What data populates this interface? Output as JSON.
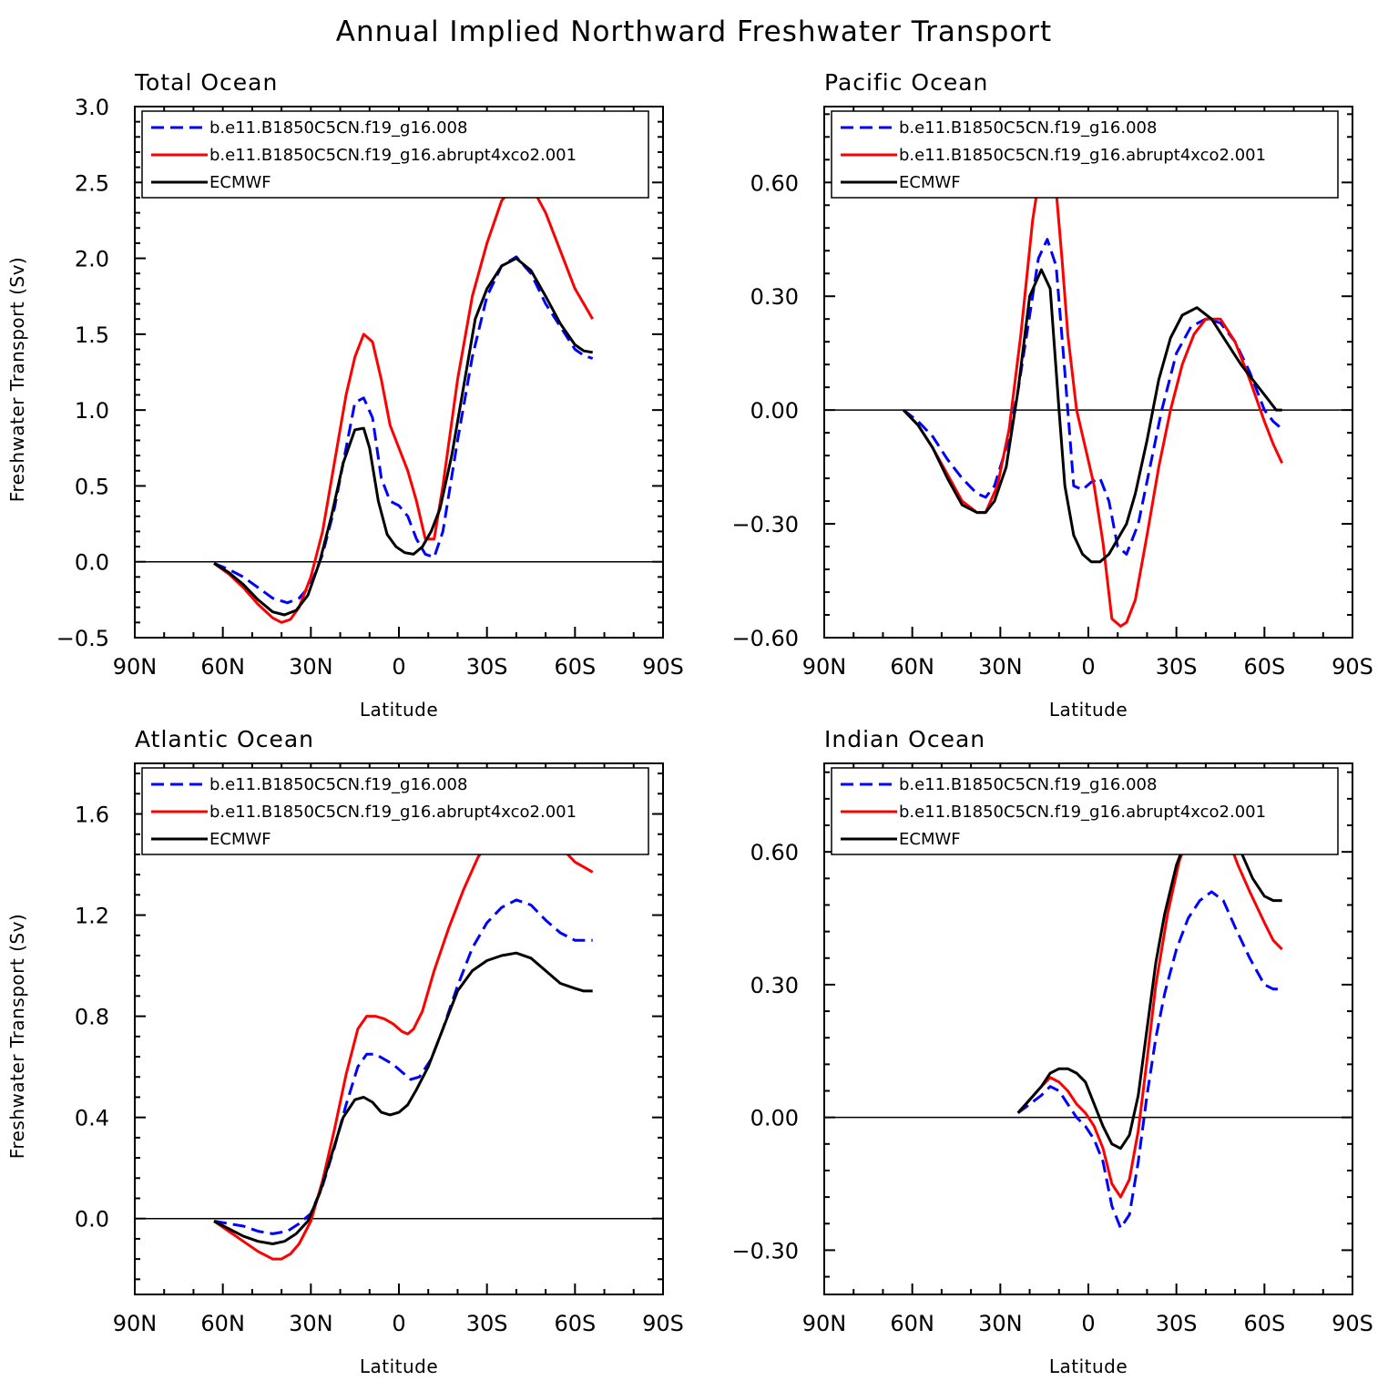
{
  "figure_title": "Annual Implied Northward Freshwater Transport",
  "colors": {
    "control": "#0000ff",
    "abrupt4xco2": "#ff0000",
    "ecmwf": "#000000",
    "zero_line": "#000000"
  },
  "chart_data": [
    {
      "type": "line",
      "title": "Total Ocean",
      "xlabel": "Latitude",
      "ylabel": "Freshwater Transport (Sv)",
      "xlim": [
        -90,
        90
      ],
      "ylim": [
        -0.5,
        3.0
      ],
      "xticks": [
        -90,
        -60,
        -30,
        0,
        30,
        60,
        90
      ],
      "xtick_labels": [
        "90N",
        "60N",
        "30N",
        "0",
        "30S",
        "60S",
        "90S"
      ],
      "yticks": [
        -0.5,
        0.0,
        0.5,
        1.0,
        1.5,
        2.0,
        2.5,
        3.0
      ],
      "ytick_labels": [
        "−0.5",
        "0.0",
        "0.5",
        "1.0",
        "1.5",
        "2.0",
        "2.5",
        "3.0"
      ],
      "legend_position": "top-left",
      "series": [
        {
          "name": "b.e11.B1850C5CN.f19_g16.008",
          "style": "dashed",
          "colorKey": "control",
          "x": [
            -63,
            -58,
            -53,
            -48,
            -43,
            -38,
            -34,
            -30,
            -26,
            -22,
            -18,
            -15,
            -12,
            -9,
            -6,
            -3,
            0,
            3,
            6,
            9,
            12,
            15,
            20,
            25,
            30,
            35,
            40,
            45,
            50,
            55,
            60,
            63,
            66
          ],
          "y": [
            -0.01,
            -0.05,
            -0.1,
            -0.17,
            -0.24,
            -0.27,
            -0.24,
            -0.15,
            0.05,
            0.35,
            0.75,
            1.05,
            1.08,
            0.95,
            0.55,
            0.4,
            0.37,
            0.3,
            0.15,
            0.05,
            0.03,
            0.2,
            0.8,
            1.35,
            1.75,
            1.95,
            2.01,
            1.9,
            1.7,
            1.55,
            1.4,
            1.36,
            1.34
          ]
        },
        {
          "name": "b.e11.B1850C5CN.f19_g16.abrupt4xco2.001",
          "style": "solid",
          "colorKey": "abrupt4xco2",
          "x": [
            -63,
            -58,
            -53,
            -48,
            -43,
            -40,
            -37,
            -34,
            -30,
            -26,
            -22,
            -18,
            -15,
            -12,
            -9,
            -6,
            -3,
            0,
            3,
            6,
            9,
            12,
            15,
            20,
            25,
            30,
            35,
            40,
            45,
            50,
            55,
            60,
            63,
            66
          ],
          "y": [
            -0.01,
            -0.08,
            -0.17,
            -0.28,
            -0.37,
            -0.4,
            -0.38,
            -0.3,
            -0.1,
            0.2,
            0.65,
            1.1,
            1.35,
            1.5,
            1.45,
            1.2,
            0.9,
            0.75,
            0.6,
            0.4,
            0.15,
            0.15,
            0.5,
            1.2,
            1.75,
            2.1,
            2.38,
            2.49,
            2.48,
            2.3,
            2.05,
            1.8,
            1.7,
            1.6
          ]
        },
        {
          "name": "ECMWF",
          "style": "solid",
          "colorKey": "ecmwf",
          "x": [
            -63,
            -58,
            -53,
            -48,
            -43,
            -39,
            -35,
            -31,
            -27,
            -23,
            -19,
            -15,
            -12,
            -10,
            -7,
            -4,
            -1,
            2,
            5,
            8,
            11,
            14,
            18,
            22,
            26,
            30,
            35,
            40,
            45,
            50,
            55,
            60,
            63,
            66
          ],
          "y": [
            -0.01,
            -0.07,
            -0.15,
            -0.25,
            -0.33,
            -0.35,
            -0.32,
            -0.22,
            0.0,
            0.3,
            0.65,
            0.87,
            0.88,
            0.75,
            0.4,
            0.18,
            0.1,
            0.06,
            0.05,
            0.1,
            0.2,
            0.35,
            0.7,
            1.15,
            1.6,
            1.8,
            1.95,
            2.0,
            1.92,
            1.75,
            1.57,
            1.43,
            1.39,
            1.38
          ]
        }
      ]
    },
    {
      "type": "line",
      "title": "Pacific Ocean",
      "xlabel": "Latitude",
      "ylabel": "",
      "xlim": [
        -90,
        90
      ],
      "ylim": [
        -0.6,
        0.8
      ],
      "xticks": [
        -90,
        -60,
        -30,
        0,
        30,
        60,
        90
      ],
      "xtick_labels": [
        "90N",
        "60N",
        "30N",
        "0",
        "30S",
        "60S",
        "90S"
      ],
      "yticks": [
        -0.6,
        -0.3,
        0.0,
        0.3,
        0.6
      ],
      "ytick_labels": [
        "−0.60",
        "−0.30",
        "0.00",
        "0.30",
        "0.60"
      ],
      "legend_position": "top-left",
      "series": [
        {
          "name": "b.e11.B1850C5CN.f19_g16.008",
          "style": "dashed",
          "colorKey": "control",
          "x": [
            -63,
            -58,
            -53,
            -48,
            -43,
            -38,
            -35,
            -32,
            -28,
            -24,
            -20,
            -17,
            -14,
            -11,
            -8,
            -5,
            -2,
            1,
            4,
            7,
            10,
            13,
            17,
            21,
            25,
            30,
            35,
            40,
            45,
            50,
            55,
            60,
            63,
            66
          ],
          "y": [
            0.0,
            -0.03,
            -0.07,
            -0.13,
            -0.18,
            -0.22,
            -0.23,
            -0.2,
            -0.1,
            0.05,
            0.25,
            0.4,
            0.45,
            0.38,
            0.1,
            -0.2,
            -0.21,
            -0.19,
            -0.18,
            -0.24,
            -0.36,
            -0.38,
            -0.3,
            -0.15,
            0.0,
            0.15,
            0.22,
            0.24,
            0.23,
            0.18,
            0.1,
            0.0,
            -0.03,
            -0.05
          ]
        },
        {
          "name": "b.e11.B1850C5CN.f19_g16.abrupt4xco2.001",
          "style": "solid",
          "colorKey": "abrupt4xco2",
          "x": [
            -63,
            -58,
            -53,
            -48,
            -43,
            -38,
            -35,
            -31,
            -27,
            -23,
            -19,
            -16,
            -13,
            -11,
            -9,
            -7,
            -4,
            -1,
            2,
            5,
            8,
            11,
            13,
            16,
            20,
            24,
            28,
            32,
            36,
            40,
            45,
            50,
            55,
            60,
            63,
            66
          ],
          "y": [
            0.0,
            -0.04,
            -0.1,
            -0.17,
            -0.24,
            -0.27,
            -0.27,
            -0.2,
            -0.05,
            0.2,
            0.5,
            0.65,
            0.66,
            0.58,
            0.4,
            0.2,
            0.0,
            -0.1,
            -0.2,
            -0.35,
            -0.55,
            -0.57,
            -0.56,
            -0.5,
            -0.33,
            -0.15,
            0.0,
            0.12,
            0.2,
            0.24,
            0.24,
            0.18,
            0.08,
            -0.03,
            -0.09,
            -0.14
          ]
        },
        {
          "name": "ECMWF",
          "style": "solid",
          "colorKey": "ecmwf",
          "x": [
            -63,
            -58,
            -53,
            -48,
            -43,
            -38,
            -35,
            -32,
            -28,
            -24,
            -20,
            -16,
            -13,
            -10,
            -8,
            -5,
            -2,
            1,
            4,
            7,
            10,
            13,
            16,
            20,
            24,
            28,
            32,
            37,
            42,
            47,
            52,
            57,
            61,
            64,
            66
          ],
          "y": [
            0.0,
            -0.04,
            -0.1,
            -0.18,
            -0.25,
            -0.27,
            -0.27,
            -0.24,
            -0.15,
            0.05,
            0.3,
            0.37,
            0.32,
            0.0,
            -0.2,
            -0.33,
            -0.38,
            -0.4,
            -0.4,
            -0.38,
            -0.34,
            -0.3,
            -0.22,
            -0.08,
            0.08,
            0.19,
            0.25,
            0.27,
            0.24,
            0.18,
            0.12,
            0.07,
            0.03,
            0.0,
            0.0
          ]
        }
      ]
    },
    {
      "type": "line",
      "title": "Atlantic Ocean",
      "xlabel": "Latitude",
      "ylabel": "Freshwater Transport (Sv)",
      "xlim": [
        -90,
        90
      ],
      "ylim": [
        -0.3,
        1.8
      ],
      "xticks": [
        -90,
        -60,
        -30,
        0,
        30,
        60,
        90
      ],
      "xtick_labels": [
        "90N",
        "60N",
        "30N",
        "0",
        "30S",
        "60S",
        "90S"
      ],
      "yticks": [
        0.0,
        0.4,
        0.8,
        1.2,
        1.6
      ],
      "ytick_labels": [
        "0.0",
        "0.4",
        "0.8",
        "1.2",
        "1.6"
      ],
      "legend_position": "top-left",
      "series": [
        {
          "name": "b.e11.B1850C5CN.f19_g16.008",
          "style": "dashed",
          "colorKey": "control",
          "x": [
            -63,
            -58,
            -53,
            -48,
            -43,
            -38,
            -34,
            -30,
            -26,
            -22,
            -18,
            -14,
            -11,
            -8,
            -5,
            -2,
            1,
            4,
            7,
            11,
            15,
            20,
            25,
            30,
            35,
            40,
            45,
            50,
            55,
            60,
            63,
            66
          ],
          "y": [
            -0.01,
            -0.02,
            -0.03,
            -0.05,
            -0.06,
            -0.05,
            -0.02,
            0.02,
            0.13,
            0.28,
            0.45,
            0.6,
            0.65,
            0.65,
            0.63,
            0.61,
            0.58,
            0.55,
            0.56,
            0.63,
            0.75,
            0.92,
            1.07,
            1.17,
            1.23,
            1.26,
            1.24,
            1.18,
            1.13,
            1.1,
            1.1,
            1.1
          ]
        },
        {
          "name": "b.e11.B1850C5CN.f19_g16.abrupt4xco2.001",
          "style": "solid",
          "colorKey": "abrupt4xco2",
          "x": [
            -63,
            -58,
            -53,
            -48,
            -43,
            -40,
            -37,
            -34,
            -30,
            -26,
            -22,
            -18,
            -14,
            -11,
            -8,
            -5,
            -2,
            1,
            3,
            5,
            8,
            12,
            17,
            22,
            27,
            32,
            37,
            42,
            46,
            50,
            55,
            60,
            63,
            66
          ],
          "y": [
            -0.01,
            -0.05,
            -0.09,
            -0.13,
            -0.16,
            -0.16,
            -0.14,
            -0.1,
            -0.01,
            0.15,
            0.35,
            0.57,
            0.75,
            0.8,
            0.8,
            0.79,
            0.77,
            0.74,
            0.73,
            0.75,
            0.82,
            0.98,
            1.15,
            1.3,
            1.43,
            1.51,
            1.55,
            1.57,
            1.57,
            1.53,
            1.47,
            1.41,
            1.39,
            1.37
          ]
        },
        {
          "name": "ECMWF",
          "style": "solid",
          "colorKey": "ecmwf",
          "x": [
            -63,
            -58,
            -53,
            -48,
            -43,
            -39,
            -35,
            -31,
            -27,
            -23,
            -19,
            -15,
            -12,
            -9,
            -6,
            -3,
            0,
            3,
            6,
            10,
            15,
            20,
            25,
            30,
            35,
            40,
            45,
            50,
            55,
            60,
            63,
            66
          ],
          "y": [
            -0.01,
            -0.04,
            -0.07,
            -0.09,
            -0.1,
            -0.09,
            -0.06,
            -0.01,
            0.1,
            0.25,
            0.4,
            0.47,
            0.48,
            0.46,
            0.42,
            0.41,
            0.42,
            0.45,
            0.51,
            0.6,
            0.75,
            0.9,
            0.98,
            1.02,
            1.04,
            1.05,
            1.03,
            0.98,
            0.93,
            0.91,
            0.9,
            0.9
          ]
        }
      ]
    },
    {
      "type": "line",
      "title": "Indian Ocean",
      "xlabel": "Latitude",
      "ylabel": "",
      "xlim": [
        -90,
        90
      ],
      "ylim": [
        -0.4,
        0.8
      ],
      "xticks": [
        -90,
        -60,
        -30,
        0,
        30,
        60,
        90
      ],
      "xtick_labels": [
        "90N",
        "60N",
        "30N",
        "0",
        "30S",
        "60S",
        "90S"
      ],
      "yticks": [
        -0.3,
        0.0,
        0.3,
        0.6
      ],
      "ytick_labels": [
        "−0.30",
        "0.00",
        "0.30",
        "0.60"
      ],
      "legend_position": "top-left",
      "series": [
        {
          "name": "b.e11.B1850C5CN.f19_g16.008",
          "style": "dashed",
          "colorKey": "control",
          "x": [
            -24,
            -20,
            -16,
            -13,
            -10,
            -7,
            -4,
            -1,
            2,
            5,
            8,
            11,
            14,
            17,
            20,
            23,
            26,
            30,
            34,
            38,
            42,
            46,
            50,
            55,
            60,
            63,
            66
          ],
          "y": [
            0.01,
            0.03,
            0.05,
            0.07,
            0.06,
            0.03,
            0.0,
            -0.02,
            -0.05,
            -0.1,
            -0.2,
            -0.25,
            -0.22,
            -0.1,
            0.05,
            0.18,
            0.28,
            0.38,
            0.45,
            0.49,
            0.51,
            0.49,
            0.43,
            0.36,
            0.3,
            0.29,
            0.29
          ]
        },
        {
          "name": "b.e11.B1850C5CN.f19_g16.abrupt4xco2.001",
          "style": "solid",
          "colorKey": "abrupt4xco2",
          "x": [
            -24,
            -20,
            -16,
            -13,
            -10,
            -7,
            -4,
            -1,
            2,
            5,
            8,
            11,
            14,
            17,
            20,
            23,
            27,
            31,
            35,
            39,
            43,
            47,
            51,
            55,
            60,
            63,
            66
          ],
          "y": [
            0.01,
            0.04,
            0.07,
            0.09,
            0.08,
            0.06,
            0.03,
            0.01,
            -0.02,
            -0.07,
            -0.15,
            -0.18,
            -0.14,
            -0.03,
            0.13,
            0.3,
            0.46,
            0.58,
            0.65,
            0.68,
            0.68,
            0.64,
            0.57,
            0.51,
            0.44,
            0.4,
            0.38
          ]
        },
        {
          "name": "ECMWF",
          "style": "solid",
          "colorKey": "ecmwf",
          "x": [
            -24,
            -20,
            -16,
            -13,
            -10,
            -7,
            -4,
            -1,
            2,
            5,
            8,
            11,
            14,
            17,
            20,
            23,
            26,
            30,
            34,
            38,
            41,
            44,
            48,
            52,
            56,
            60,
            63,
            66
          ],
          "y": [
            0.01,
            0.04,
            0.07,
            0.1,
            0.11,
            0.11,
            0.1,
            0.08,
            0.03,
            -0.02,
            -0.06,
            -0.07,
            -0.04,
            0.05,
            0.2,
            0.35,
            0.46,
            0.57,
            0.64,
            0.69,
            0.7,
            0.7,
            0.66,
            0.6,
            0.54,
            0.5,
            0.49,
            0.49
          ]
        }
      ]
    }
  ]
}
